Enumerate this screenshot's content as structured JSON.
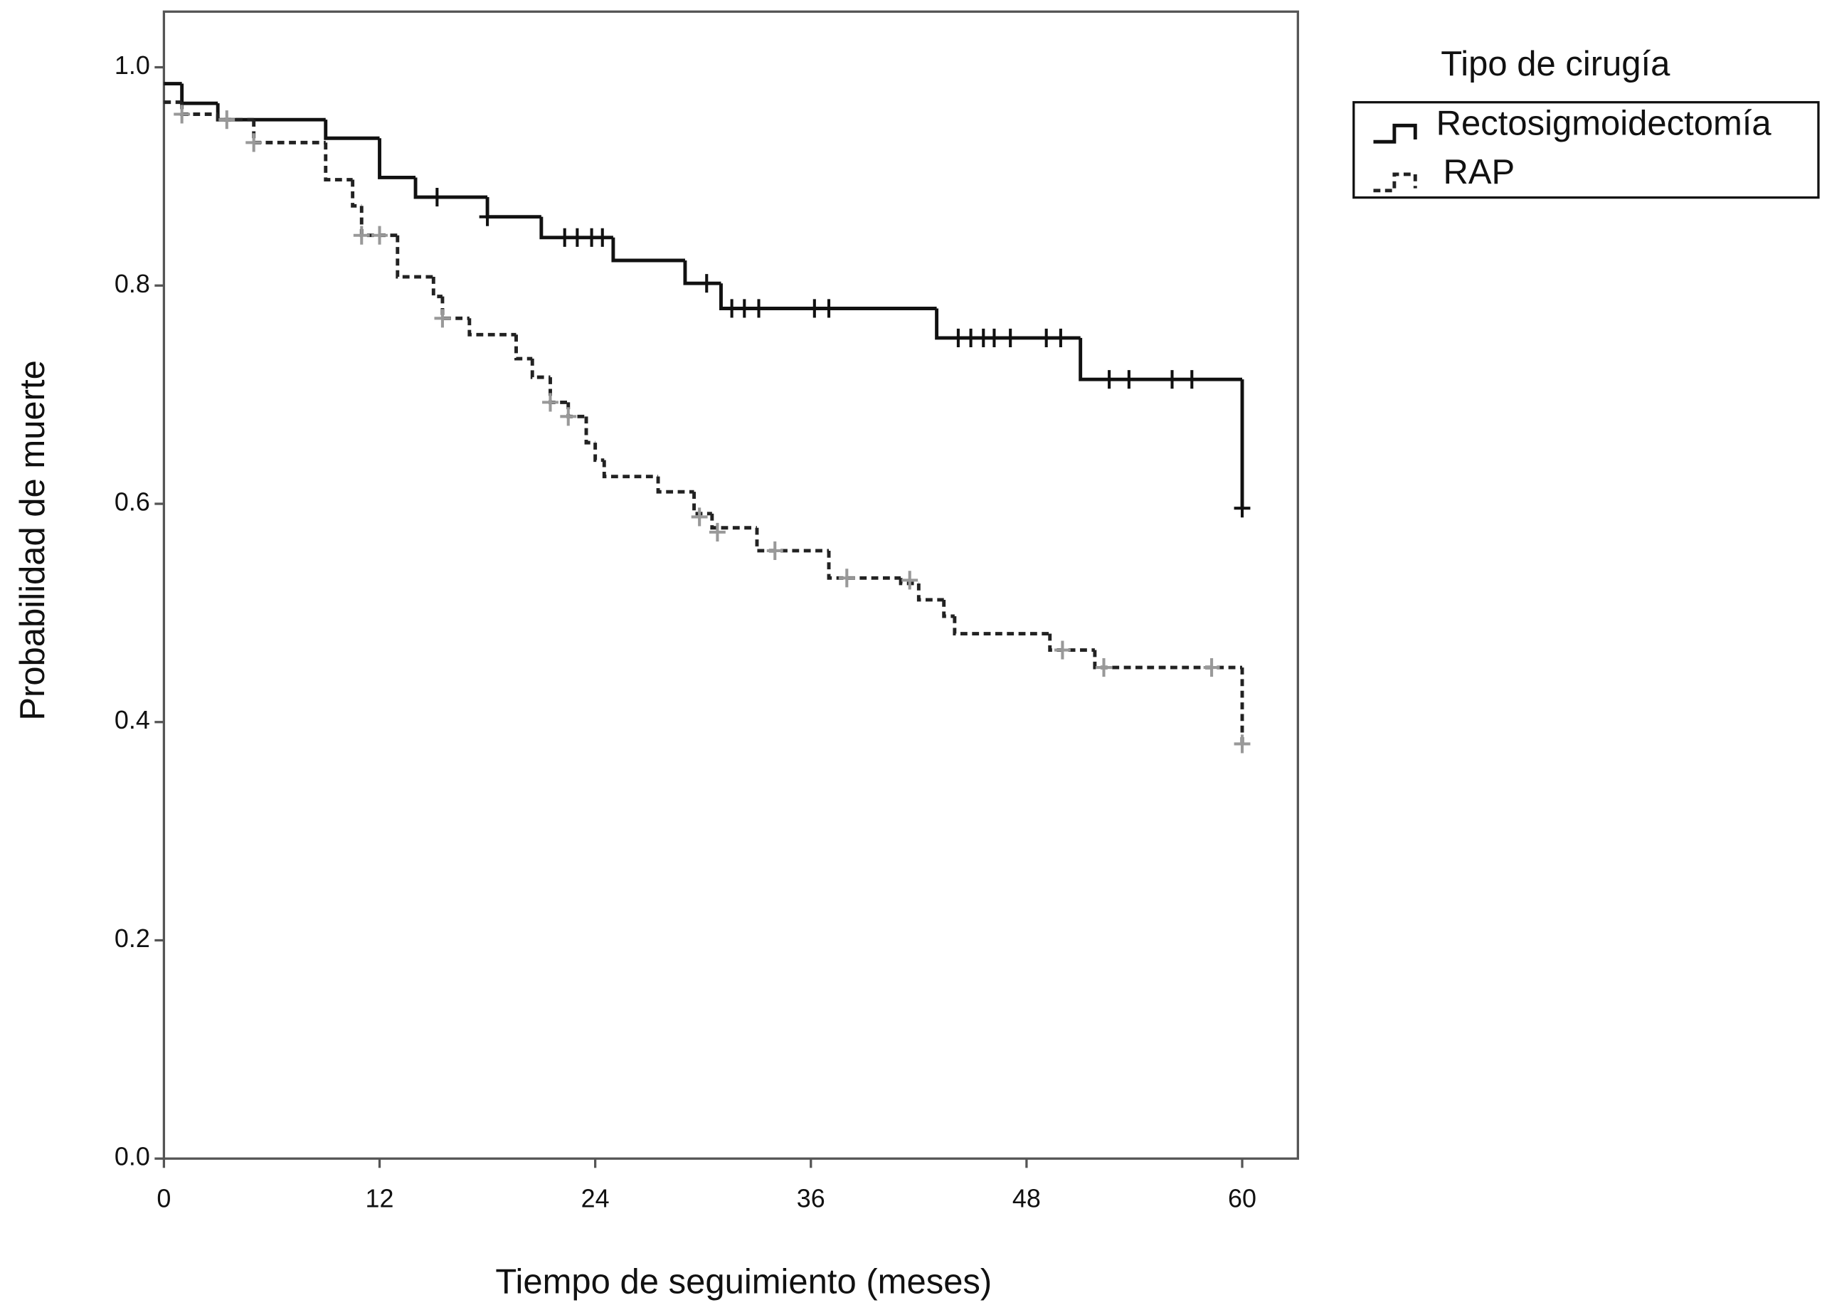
{
  "chart_data": {
    "type": "step",
    "y_label": "Probabilidad de muerte",
    "x_label": "Tiempo de seguimiento (meses)",
    "legend_title": "Tipo de cirugía",
    "legend": "upper right outside",
    "xlim": [
      0,
      63.1
    ],
    "ylim": [
      0,
      1.051
    ],
    "xticks": [
      0,
      12,
      24,
      36,
      48,
      60
    ],
    "yticks": [
      {
        "value": 0,
        "label": "0.0"
      },
      0.2,
      0.4,
      0.6,
      0.8,
      {
        "value": 1,
        "label": "1.0"
      }
    ],
    "series": [
      {
        "name": "Rectosigmoidectomía",
        "color": "#111111",
        "dash": false,
        "censor_color": "#111111",
        "x": [
          0,
          1,
          3,
          9,
          12,
          14,
          18,
          21,
          25,
          29,
          31,
          43,
          51,
          60
        ],
        "values": [
          0.985,
          0.967,
          0.952,
          0.935,
          0.899,
          0.881,
          0.863,
          0.844,
          0.823,
          0.802,
          0.779,
          0.752,
          0.714,
          0.596
        ],
        "censored_x": [
          15.2,
          18,
          22.3,
          23,
          23.8,
          24.4,
          30.2,
          31.6,
          32.3,
          33.1,
          36.2,
          37,
          44.2,
          44.9,
          45.6,
          46.2,
          47.1,
          49.1,
          49.9,
          52.6,
          53.7,
          56.1,
          57.2,
          60
        ],
        "censored_values": [
          0.881,
          0.863,
          0.844,
          0.844,
          0.844,
          0.844,
          0.802,
          0.779,
          0.779,
          0.779,
          0.779,
          0.779,
          0.752,
          0.752,
          0.752,
          0.752,
          0.752,
          0.752,
          0.752,
          0.714,
          0.714,
          0.714,
          0.714,
          0.596
        ]
      },
      {
        "name": "RAP",
        "color": "#222222",
        "dash": true,
        "censor_color": "#999999",
        "x": [
          0,
          1,
          3,
          5,
          9,
          10.5,
          11,
          13,
          15,
          15.5,
          17,
          19.6,
          20.5,
          21.5,
          22.5,
          23.5,
          24,
          24.5,
          27.5,
          29.5,
          30.5,
          33,
          37,
          41,
          42,
          43.4,
          44,
          49.3,
          51.8,
          60
        ],
        "values": [
          0.968,
          0.957,
          0.952,
          0.931,
          0.897,
          0.873,
          0.846,
          0.808,
          0.79,
          0.77,
          0.755,
          0.733,
          0.716,
          0.693,
          0.68,
          0.656,
          0.64,
          0.625,
          0.611,
          0.591,
          0.578,
          0.557,
          0.532,
          0.527,
          0.512,
          0.497,
          0.481,
          0.466,
          0.45,
          0.38
        ],
        "censored_x": [
          1,
          3.5,
          5,
          11,
          12,
          15.5,
          21.5,
          22.5,
          29.8,
          30.8,
          34,
          38,
          41.5,
          50,
          52.3,
          58.3,
          60
        ],
        "censored_values": [
          0.957,
          0.952,
          0.931,
          0.846,
          0.846,
          0.77,
          0.693,
          0.68,
          0.588,
          0.574,
          0.557,
          0.532,
          0.53,
          0.466,
          0.45,
          0.45,
          0.38
        ]
      }
    ]
  }
}
